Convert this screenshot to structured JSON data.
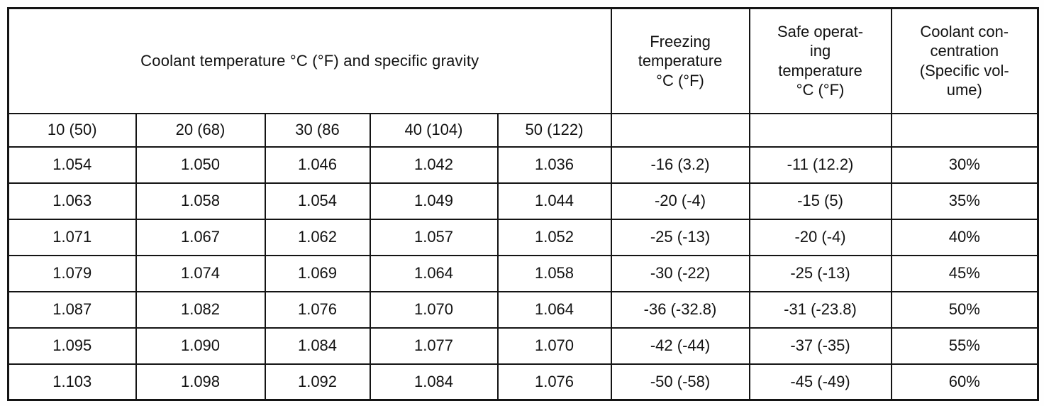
{
  "table": {
    "header": {
      "coolant_main": "Coolant temperature °C (°F) and specific gravity",
      "freezing": "Freezing\ntemperature\n°C (°F)",
      "safe_operating": "Safe operat-\ning\ntemperature\n°C (°F)",
      "concentration": "Coolant con-\ncentration\n(Specific vol-\nume)"
    },
    "subheader": [
      "10 (50)",
      "20 (68)",
      "30 (86",
      "40 (104)",
      "50 (122)",
      "",
      "",
      ""
    ],
    "rows": [
      [
        "1.054",
        "1.050",
        "1.046",
        "1.042",
        "1.036",
        "-16 (3.2)",
        "-11 (12.2)",
        "30%"
      ],
      [
        "1.063",
        "1.058",
        "1.054",
        "1.049",
        "1.044",
        "-20 (-4)",
        "-15 (5)",
        "35%"
      ],
      [
        "1.071",
        "1.067",
        "1.062",
        "1.057",
        "1.052",
        "-25 (-13)",
        "-20 (-4)",
        "40%"
      ],
      [
        "1.079",
        "1.074",
        "1.069",
        "1.064",
        "1.058",
        "-30 (-22)",
        "-25 (-13)",
        "45%"
      ],
      [
        "1.087",
        "1.082",
        "1.076",
        "1.070",
        "1.064",
        "-36 (-32.8)",
        "-31 (-23.8)",
        "50%"
      ],
      [
        "1.095",
        "1.090",
        "1.084",
        "1.077",
        "1.070",
        "-42 (-44)",
        "-37 (-35)",
        "55%"
      ],
      [
        "1.103",
        "1.098",
        "1.092",
        "1.084",
        "1.076",
        "-50 (-58)",
        "-45 (-49)",
        "60%"
      ]
    ],
    "bold_cells": [
      [
        1,
        1
      ],
      [
        1,
        6
      ]
    ],
    "colors": {
      "border": "#141414",
      "text": "#121212",
      "background": "#ffffff"
    }
  }
}
